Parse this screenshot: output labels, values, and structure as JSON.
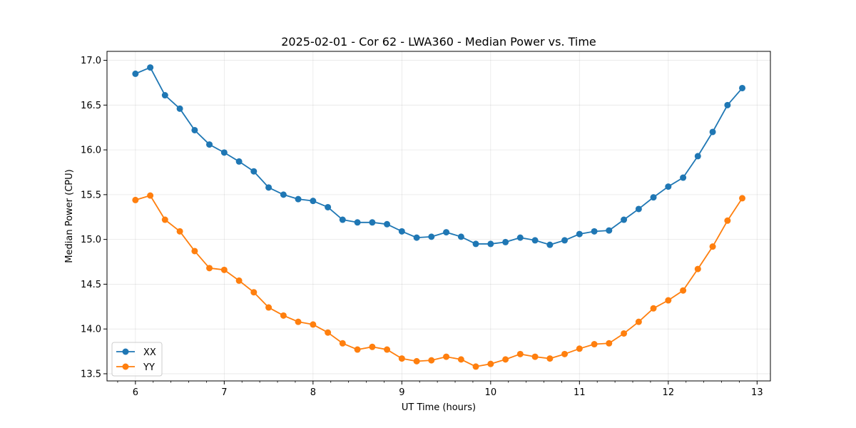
{
  "chart_data": {
    "type": "line",
    "title": "2025-02-01 - Cor 62 - LWA360 - Median Power vs. Time",
    "xlabel": "UT Time (hours)",
    "ylabel": "Median Power (CPU)",
    "xlim": [
      5.68,
      13.15
    ],
    "ylim": [
      13.42,
      17.1
    ],
    "xticks": [
      6,
      7,
      8,
      9,
      10,
      11,
      12,
      13
    ],
    "yticks": [
      13.5,
      14.0,
      14.5,
      15.0,
      15.5,
      16.0,
      16.5,
      17.0
    ],
    "xtick_labels": [
      "6",
      "7",
      "8",
      "9",
      "10",
      "11",
      "12",
      "13"
    ],
    "ytick_labels": [
      "13.5",
      "14.0",
      "14.5",
      "15.0",
      "15.5",
      "16.0",
      "16.5",
      "17.0"
    ],
    "grid": true,
    "legend_position": "bottom-left",
    "x": [
      6.0,
      6.167,
      6.333,
      6.5,
      6.667,
      6.833,
      7.0,
      7.167,
      7.333,
      7.5,
      7.667,
      7.833,
      8.0,
      8.167,
      8.333,
      8.5,
      8.667,
      8.833,
      9.0,
      9.167,
      9.333,
      9.5,
      9.667,
      9.833,
      10.0,
      10.167,
      10.333,
      10.5,
      10.667,
      10.833,
      11.0,
      11.167,
      11.333,
      11.5,
      11.667,
      11.833,
      12.0,
      12.167,
      12.333,
      12.5,
      12.667,
      12.833
    ],
    "series": [
      {
        "name": "XX",
        "color": "#1f77b4",
        "values": [
          16.85,
          16.92,
          16.61,
          16.46,
          16.22,
          16.06,
          15.97,
          15.87,
          15.76,
          15.58,
          15.5,
          15.45,
          15.43,
          15.36,
          15.22,
          15.19,
          15.19,
          15.17,
          15.09,
          15.02,
          15.03,
          15.08,
          15.03,
          14.95,
          14.95,
          14.97,
          15.02,
          14.99,
          14.94,
          14.99,
          15.06,
          15.09,
          15.1,
          15.22,
          15.34,
          15.47,
          15.59,
          15.69,
          15.93,
          16.2,
          16.5,
          16.69
        ]
      },
      {
        "name": "YY",
        "color": "#ff7f0e",
        "values": [
          15.44,
          15.49,
          15.22,
          15.09,
          14.87,
          14.68,
          14.66,
          14.54,
          14.41,
          14.24,
          14.15,
          14.08,
          14.05,
          13.96,
          13.84,
          13.77,
          13.8,
          13.77,
          13.67,
          13.64,
          13.65,
          13.69,
          13.66,
          13.58,
          13.61,
          13.66,
          13.72,
          13.69,
          13.67,
          13.72,
          13.78,
          13.83,
          13.84,
          13.95,
          14.08,
          14.23,
          14.32,
          14.43,
          14.67,
          14.92,
          15.21,
          15.46
        ]
      }
    ]
  }
}
